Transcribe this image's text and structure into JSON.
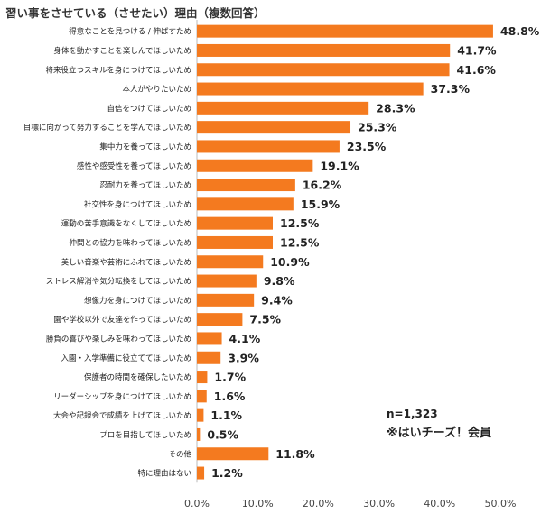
{
  "chart_data": {
    "type": "bar",
    "orientation": "horizontal",
    "title": "習い事をさせている（させたい）理由（複数回答）",
    "categories": [
      "得意なことを見つける / 伸ばすため",
      "身体を動かすことを楽しんでほしいため",
      "将来役立つスキルを身につけてほしいため",
      "本人がやりたいため",
      "自信をつけてほしいため",
      "目標に向かって努力することを学んでほしいため",
      "集中力を養ってほしいため",
      "感性や感受性を養ってほしいため",
      "忍耐力を養ってほしいため",
      "社交性を身につけてほしいため",
      "運動の苦手意識をなくしてほしいため",
      "仲間との協力を味わってほしいため",
      "美しい音楽や芸術にふれてほしいため",
      "ストレス解消や気分転換をしてほしいため",
      "想像力を身につけてほしいため",
      "園や学校以外で友達を作ってほしいため",
      "勝負の喜びや楽しみを味わってほしいため",
      "入園・入学準備に役立ててほしいため",
      "保護者の時間を確保したいため",
      "リーダーシップを身につけてほしいため",
      "大会や記録会で成績を上げてほしいため",
      "プロを目指してほしいため",
      "その他",
      "特に理由はない"
    ],
    "values": [
      48.8,
      41.7,
      41.6,
      37.3,
      28.3,
      25.3,
      23.5,
      19.1,
      16.2,
      15.9,
      12.5,
      12.5,
      10.9,
      9.8,
      9.4,
      7.5,
      4.1,
      3.9,
      1.7,
      1.6,
      1.1,
      0.5,
      11.8,
      1.2
    ],
    "value_labels": [
      "48.8%",
      "41.7%",
      "41.6%",
      "37.3%",
      "28.3%",
      "25.3%",
      "23.5%",
      "19.1%",
      "16.2%",
      "15.9%",
      "12.5%",
      "12.5%",
      "10.9%",
      "9.8%",
      "9.4%",
      "7.5%",
      "4.1%",
      "3.9%",
      "1.7%",
      "1.6%",
      "1.1%",
      "0.5%",
      "11.8%",
      "1.2%"
    ],
    "xlim": [
      0,
      50
    ],
    "x_ticks": [
      "0.0%",
      "10.0%",
      "20.0%",
      "30.0%",
      "40.0%",
      "50.0%"
    ],
    "bar_color": "#f47a1f",
    "grid": false
  },
  "notes": {
    "sample": "n=1,323",
    "source": "※はいチーズ！会員"
  }
}
